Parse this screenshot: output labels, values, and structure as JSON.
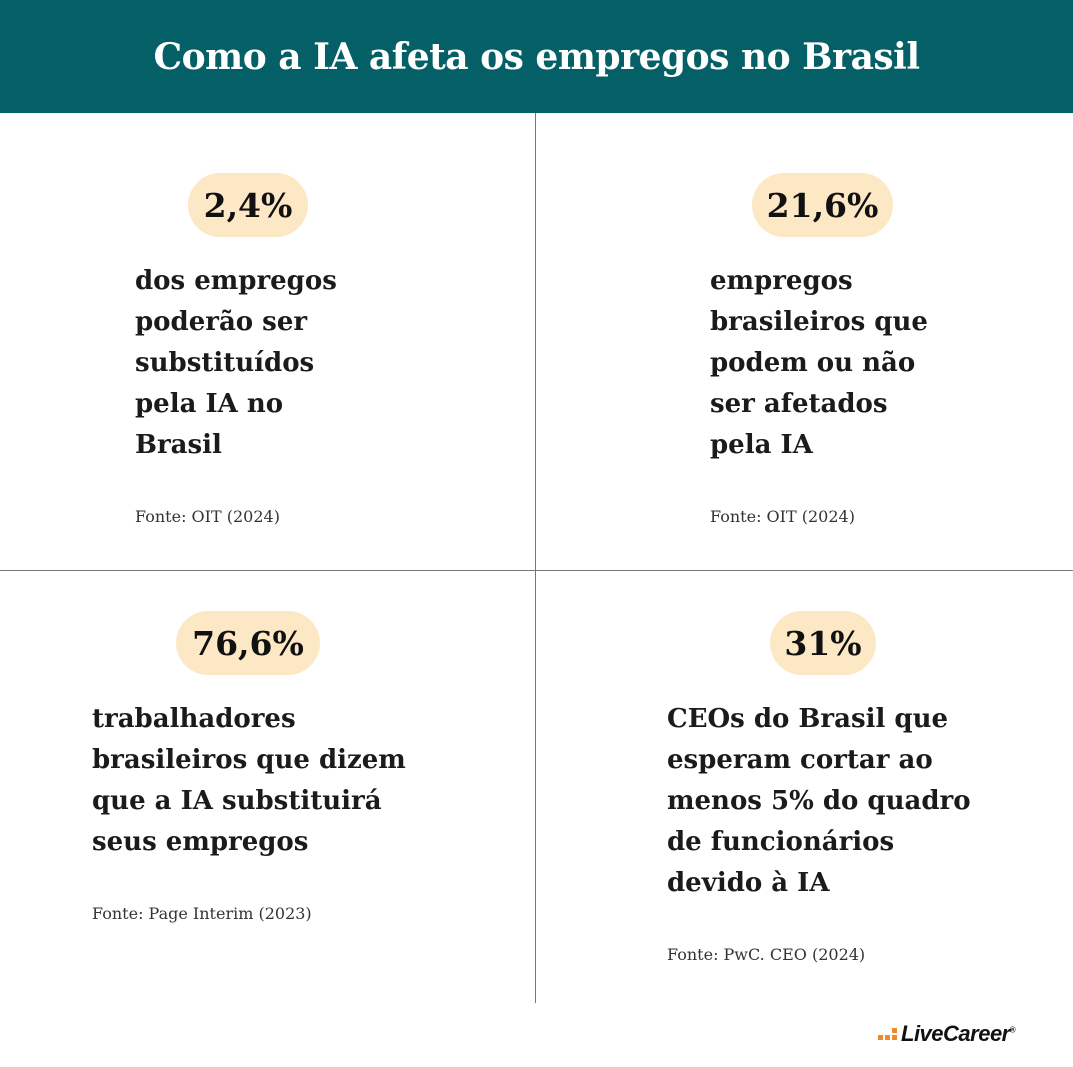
{
  "title": "Como a IA afeta os empregos no Brasil",
  "quadrants": [
    {
      "stat": "2,4%",
      "lines": [
        "dos empregos",
        "poderão ser",
        "substituídos",
        "pela IA no",
        "Brasil"
      ],
      "source": "Fonte: OIT (2024)"
    },
    {
      "stat": "21,6%",
      "lines": [
        "empregos",
        "brasileiros que",
        "podem ou não",
        "ser afetados",
        "pela IA"
      ],
      "source": "Fonte: OIT (2024)"
    },
    {
      "stat": "76,6%",
      "lines": [
        "trabalhadores",
        "brasileiros que dizem",
        "que a IA substituirá",
        "seus empregos"
      ],
      "source": "Fonte: Page Interim (2023)"
    },
    {
      "stat": "31%",
      "lines": [
        "CEOs do Brasil que",
        "esperam cortar ao",
        "menos 5% do quadro",
        "de funcionários",
        "devido à IA"
      ],
      "source": "Fonte: PwC. CEO (2024)"
    }
  ],
  "logo": {
    "text": "LiveCareer",
    "mark": "®"
  },
  "colors": {
    "header_bg": "#055f66",
    "pill_bg": "#fde8c6",
    "logo_accent": "#f08a2c"
  }
}
